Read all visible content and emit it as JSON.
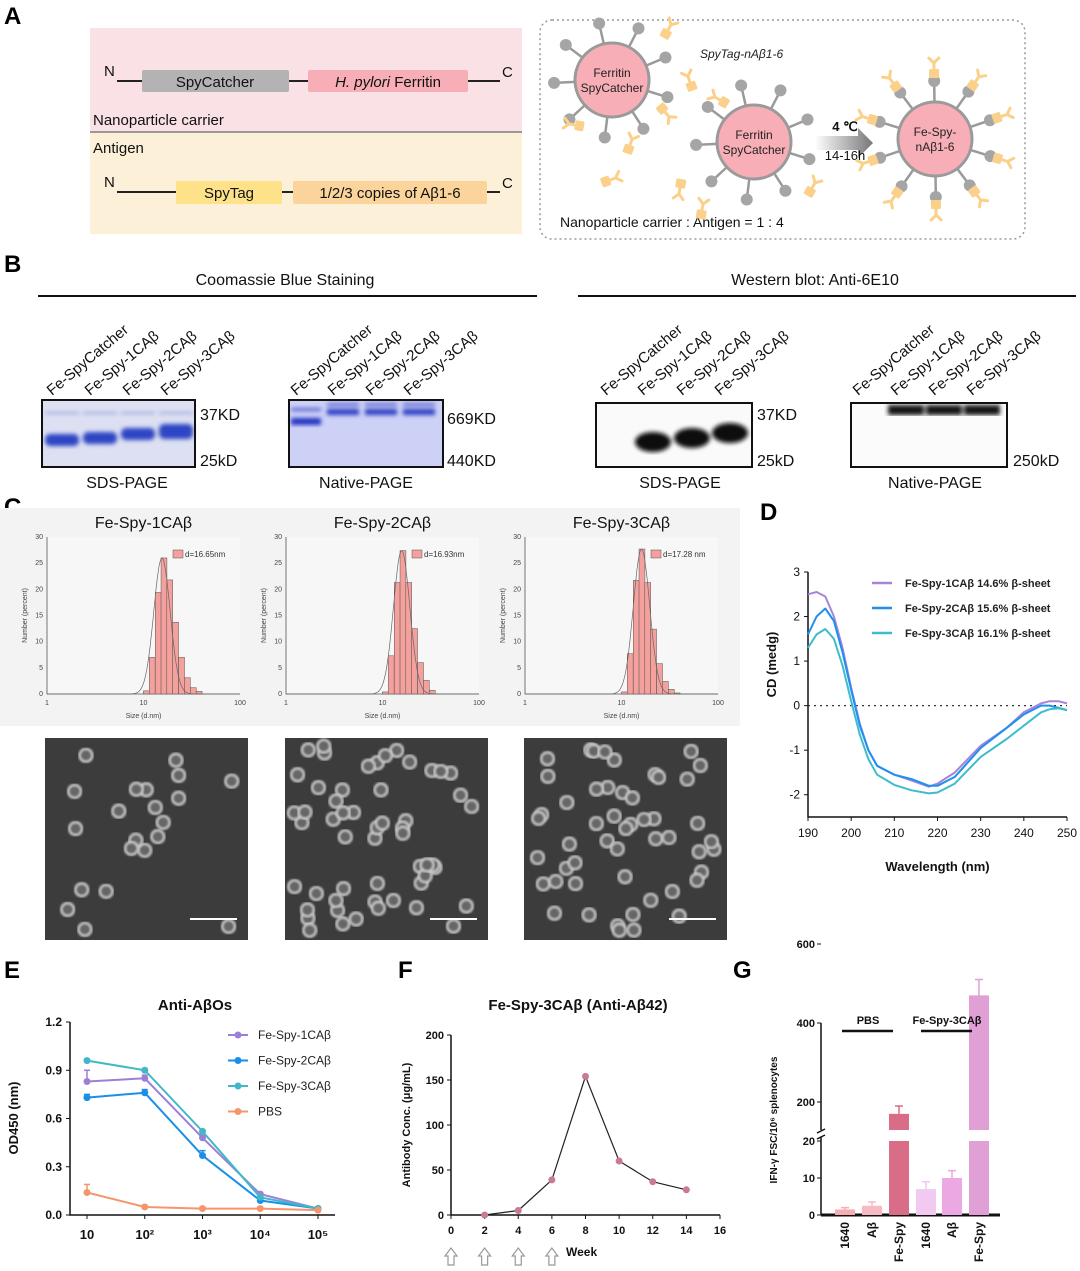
{
  "panel_labels": [
    "A",
    "B",
    "C",
    "D",
    "E",
    "F",
    "G"
  ],
  "panel_a": {
    "construct1": {
      "n": "N",
      "c": "C",
      "box1": "SpyCatcher",
      "box2_italic": "H. pylori",
      "box2_rest": " Ferritin",
      "caption": "Nanoparticle carrier"
    },
    "construct2": {
      "n": "N",
      "c": "C",
      "box1": "SpyTag",
      "box2": "1/2/3 copies of Aβ1-6",
      "caption": "Antigen"
    },
    "scheme": {
      "particle1": [
        "Ferritin",
        "SpyCatcher"
      ],
      "particle2": [
        "Ferritin",
        "SpyCatcher"
      ],
      "antigen_label": "SpyTag-nAβ1-6",
      "condition_temp": "4 ℃",
      "condition_time": "14-16h",
      "product": [
        "Fe-Spy-",
        "nAβ1-6"
      ],
      "ratio": "Nanoparticle carrier : Antigen = 1 : 4"
    },
    "colors": {
      "carrier_bg": "#f9e1e6",
      "antigen_bg": "#fdf0d8",
      "spycatcher": "#b3b3b3",
      "ferritin": "#f7aeb6",
      "spytag": "#fde28a",
      "abeta": "#fbd49b",
      "antigen_shape": "#fbd08a"
    }
  },
  "panel_b": {
    "coomassie_title": "Coomassie Blue Staining",
    "western_title": "Western blot: Anti-6E10",
    "lanes": [
      "Fe-SpyCatcher",
      "Fe-Spy-1CAβ",
      "Fe-Spy-2CAβ",
      "Fe-Spy-3CAβ"
    ],
    "gels": [
      {
        "caption": "SDS-PAGE",
        "markers": [
          "37KD",
          "25kD"
        ]
      },
      {
        "caption": "Native-PAGE",
        "markers": [
          "669KD",
          "440KD"
        ]
      },
      {
        "caption": "SDS-PAGE",
        "markers": [
          "37KD",
          "25kD"
        ]
      },
      {
        "caption": "Native-PAGE",
        "markers": [
          "250kD"
        ]
      }
    ]
  },
  "chart_data": [
    {
      "type": "bar",
      "title": "Fe-Spy-1CAβ",
      "xlabel": "Size (d.nm)",
      "ylabel": "Number (percent)",
      "x_scale": "log",
      "xlim": [
        1,
        100
      ],
      "ylim": [
        0,
        30
      ],
      "x_ticks": [
        "1",
        "10",
        "100"
      ],
      "y_ticks": [
        "0",
        "5",
        "10",
        "15",
        "20",
        "25",
        "30"
      ],
      "legend": "d=16.65nm",
      "bin_centers": [
        10.7,
        12.3,
        14.2,
        16.3,
        18.7,
        21.5,
        24.8,
        28.5,
        32.8,
        37.7
      ],
      "values": [
        0.6,
        7,
        19.4,
        26,
        21.8,
        13.7,
        7,
        3.1,
        1.2,
        0.5
      ],
      "fit_peak_nm": 16.65
    },
    {
      "type": "bar",
      "title": "Fe-Spy-2CAβ",
      "xlabel": "Size (d.nm)",
      "ylabel": "Number (percent)",
      "x_scale": "log",
      "xlim": [
        1,
        100
      ],
      "ylim": [
        0,
        30
      ],
      "x_ticks": [
        "1",
        "10",
        "100"
      ],
      "y_ticks": [
        "0",
        "5",
        "10",
        "15",
        "20",
        "25",
        "30"
      ],
      "legend": "d=16.93nm",
      "bin_centers": [
        10.7,
        12.3,
        14.2,
        16.3,
        18.7,
        21.5,
        24.8,
        28.5,
        32.8,
        37.7
      ],
      "values": [
        0.4,
        7.3,
        21.3,
        27.4,
        21.3,
        12.5,
        6,
        2.6,
        0.7,
        0
      ],
      "fit_peak_nm": 16.93
    },
    {
      "type": "bar",
      "title": "Fe-Spy-3CAβ",
      "xlabel": "Size (d.nm)",
      "ylabel": "Number (percent)",
      "x_scale": "log",
      "xlim": [
        1,
        100
      ],
      "ylim": [
        0,
        30
      ],
      "x_ticks": [
        "1",
        "10",
        "100"
      ],
      "y_ticks": [
        "0",
        "5",
        "10",
        "15",
        "20",
        "25",
        "30"
      ],
      "legend": "d=17.28 nm",
      "bin_centers": [
        10.7,
        12.3,
        14.2,
        16.3,
        18.7,
        21.5,
        24.8,
        28.5,
        32.8,
        37.7
      ],
      "values": [
        0.4,
        7.7,
        21.7,
        27.7,
        21.3,
        12.4,
        5.8,
        2.4,
        0.9,
        0.2
      ],
      "fit_peak_nm": 17.28
    },
    {
      "type": "line",
      "title": "",
      "xlabel": "Wavelength (nm)",
      "ylabel": "CD (medg)",
      "xlim": [
        190,
        250
      ],
      "ylim": [
        -2.5,
        3
      ],
      "x_ticks": [
        "190",
        "200",
        "210",
        "220",
        "230",
        "240",
        "250"
      ],
      "y_ticks": [
        "-2",
        "-1",
        "0",
        "1",
        "2",
        "3"
      ],
      "legend_position": "top-right",
      "reference_line_y": 0,
      "x": [
        190,
        192,
        194,
        196,
        198,
        200,
        202,
        204,
        206,
        210,
        214,
        218,
        220,
        224,
        230,
        236,
        240,
        244,
        246,
        248,
        250
      ],
      "series": [
        {
          "name": "Fe-Spy-1CAβ 14.6% β-sheet",
          "color": "#a784d8",
          "values": [
            2.5,
            2.55,
            2.45,
            2.0,
            1.3,
            0.4,
            -0.4,
            -1.0,
            -1.35,
            -1.55,
            -1.68,
            -1.82,
            -1.75,
            -1.5,
            -0.9,
            -0.5,
            -0.15,
            0.05,
            0.1,
            0.1,
            0.05
          ]
        },
        {
          "name": "Fe-Spy-2CAβ 15.6% β-sheet",
          "color": "#1e90ef",
          "values": [
            1.6,
            2.0,
            2.18,
            1.9,
            1.2,
            0.35,
            -0.45,
            -1.0,
            -1.35,
            -1.55,
            -1.65,
            -1.8,
            -1.8,
            -1.6,
            -0.95,
            -0.5,
            -0.2,
            0.0,
            0.0,
            -0.05,
            -0.1
          ]
        },
        {
          "name": "Fe-Spy-3CAβ 16.1% β-sheet",
          "color": "#3dbccb",
          "values": [
            1.3,
            1.6,
            1.72,
            1.5,
            0.9,
            0.1,
            -0.65,
            -1.2,
            -1.55,
            -1.78,
            -1.9,
            -1.97,
            -1.95,
            -1.75,
            -1.15,
            -0.75,
            -0.45,
            -0.15,
            -0.08,
            -0.06,
            -0.1
          ]
        }
      ]
    },
    {
      "type": "line",
      "title": "Anti-AβOs",
      "xlabel": "",
      "ylabel": "OD450 (nm)",
      "x_scale": "log",
      "ylim": [
        0,
        1.2
      ],
      "categories": [
        "10",
        "10²",
        "10³",
        "10⁴",
        "10⁵"
      ],
      "y_ticks": [
        "0.0",
        "0.3",
        "0.6",
        "0.9",
        "1.2"
      ],
      "legend_position": "top-right",
      "series": [
        {
          "name": "Fe-Spy-1CAβ",
          "color": "#9d80d6",
          "values": [
            0.83,
            0.85,
            0.48,
            0.13,
            0.04
          ],
          "errors": [
            0.07,
            0.02,
            0.02,
            0.01,
            0.01
          ]
        },
        {
          "name": "Fe-Spy-2CAβ",
          "color": "#1a8fe8",
          "values": [
            0.73,
            0.76,
            0.37,
            0.09,
            0.04
          ],
          "errors": [
            0.02,
            0.02,
            0.03,
            0.01,
            0.01
          ]
        },
        {
          "name": "Fe-Spy-3CAβ",
          "color": "#40b8c8",
          "values": [
            0.96,
            0.9,
            0.52,
            0.11,
            0.04
          ],
          "errors": [
            0.01,
            0.01,
            0.01,
            0.01,
            0.01
          ]
        },
        {
          "name": "PBS",
          "color": "#f5956a",
          "values": [
            0.14,
            0.05,
            0.04,
            0.04,
            0.03
          ],
          "errors": [
            0.05,
            0.01,
            0.01,
            0.01,
            0.01
          ]
        }
      ]
    },
    {
      "type": "line",
      "title": "Fe-Spy-3CAβ (Anti-Aβ42)",
      "xlabel": "Week",
      "ylabel": "Antibody Conc. (μg/mL)",
      "xlim": [
        0,
        16
      ],
      "ylim": [
        0,
        200
      ],
      "x_ticks": [
        "0",
        "2",
        "4",
        "6",
        "8",
        "10",
        "12",
        "14",
        "16"
      ],
      "y_ticks": [
        "0",
        "50",
        "100",
        "150",
        "200"
      ],
      "x": [
        2,
        4,
        6,
        8,
        10,
        12,
        14
      ],
      "values": [
        0,
        5,
        39,
        154,
        60,
        37,
        28
      ],
      "color": "#c87a98",
      "immunization_weeks": [
        0,
        2,
        4,
        6
      ]
    },
    {
      "type": "bar",
      "title": "",
      "ylabel": "IFN-γ FSC/10⁶ splenocytes",
      "y_axis_break": [
        20,
        130
      ],
      "y_ticks_lower": [
        "0",
        "10",
        "20"
      ],
      "y_ticks_upper": [
        "200",
        "400",
        "600"
      ],
      "groups": [
        {
          "label": "PBS"
        },
        {
          "label": "Fe-Spy-3CAβ"
        }
      ],
      "categories": [
        "1640",
        "Aβ",
        "Fe-Spy",
        "1640",
        "Aβ",
        "Fe-Spy"
      ],
      "values": [
        1.5,
        2.5,
        170,
        7,
        10,
        470
      ],
      "errors": [
        0.5,
        1,
        20,
        2,
        2,
        40
      ],
      "colors": [
        "#f6adb4",
        "#f7b9c2",
        "#d96d88",
        "#f2c9f0",
        "#eba8e2",
        "#e0a0d6"
      ]
    }
  ]
}
